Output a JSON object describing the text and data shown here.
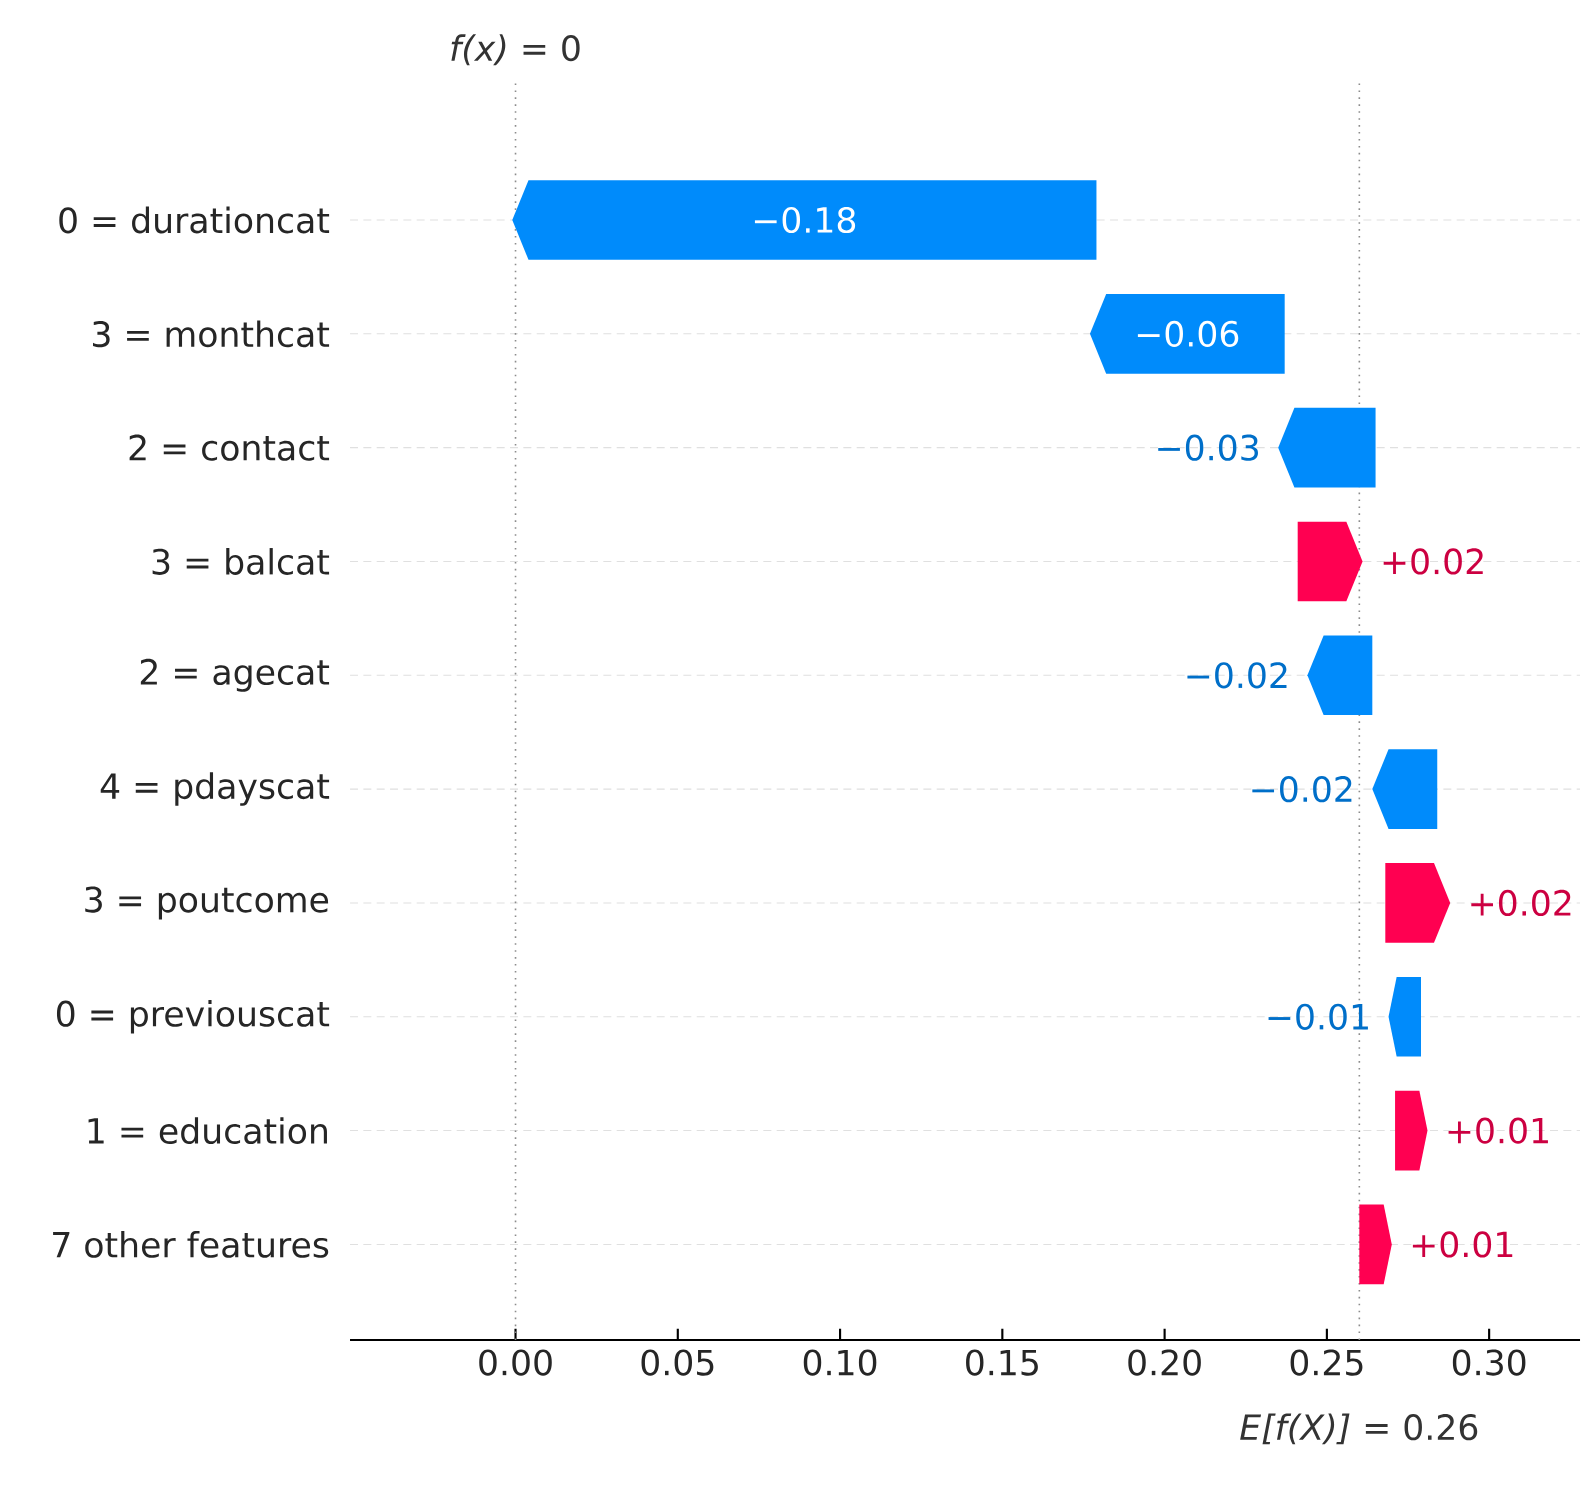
{
  "chart_data": {
    "type": "bar",
    "orientation": "horizontal",
    "categories": [
      "0 = durationcat",
      "3 = monthcat",
      "2 = contact",
      "3 = balcat",
      "2 = agecat",
      "4 = pdayscat",
      "3 = poutcome",
      "0 = previouscat",
      "1 = education",
      "7 other features"
    ],
    "values": [
      -0.18,
      -0.06,
      -0.03,
      0.02,
      -0.02,
      -0.02,
      0.02,
      -0.01,
      0.01,
      0.01
    ],
    "base": [
      0.179,
      0.237,
      0.265,
      0.241,
      0.264,
      0.284,
      0.268,
      0.279,
      0.271,
      0.26
    ],
    "colors": [
      "#008bfb",
      "#008bfb",
      "#008bfb",
      "#ff0051",
      "#008bfb",
      "#008bfb",
      "#ff0051",
      "#008bfb",
      "#ff0051",
      "#ff0051"
    ],
    "value_labels": [
      "−0.18",
      "−0.06",
      "−0.03",
      "+0.02",
      "−0.02",
      "−0.02",
      "+0.02",
      "−0.01",
      "+0.01",
      "+0.01"
    ],
    "xlim": [
      -0.051,
      0.328
    ],
    "xticks": [
      {
        "value": 0,
        "label": "0.00"
      },
      {
        "value": 0.05,
        "label": "0.05"
      },
      {
        "value": 0.1,
        "label": "0.10"
      },
      {
        "value": 0.15,
        "label": "0.15"
      },
      {
        "value": 0.2,
        "label": "0.20"
      },
      {
        "value": 0.25,
        "label": "0.25"
      },
      {
        "value": 0.3,
        "label": "0.30"
      }
    ],
    "grid": "y",
    "ref_lines": [
      {
        "axis": "x",
        "value": 0,
        "label": "*f(x)* = 0",
        "line_style": "dotted"
      },
      {
        "axis": "x",
        "value": 0.26,
        "label": "*E[f(X)]* = 0.26",
        "line_style": "dotted"
      }
    ]
  }
}
